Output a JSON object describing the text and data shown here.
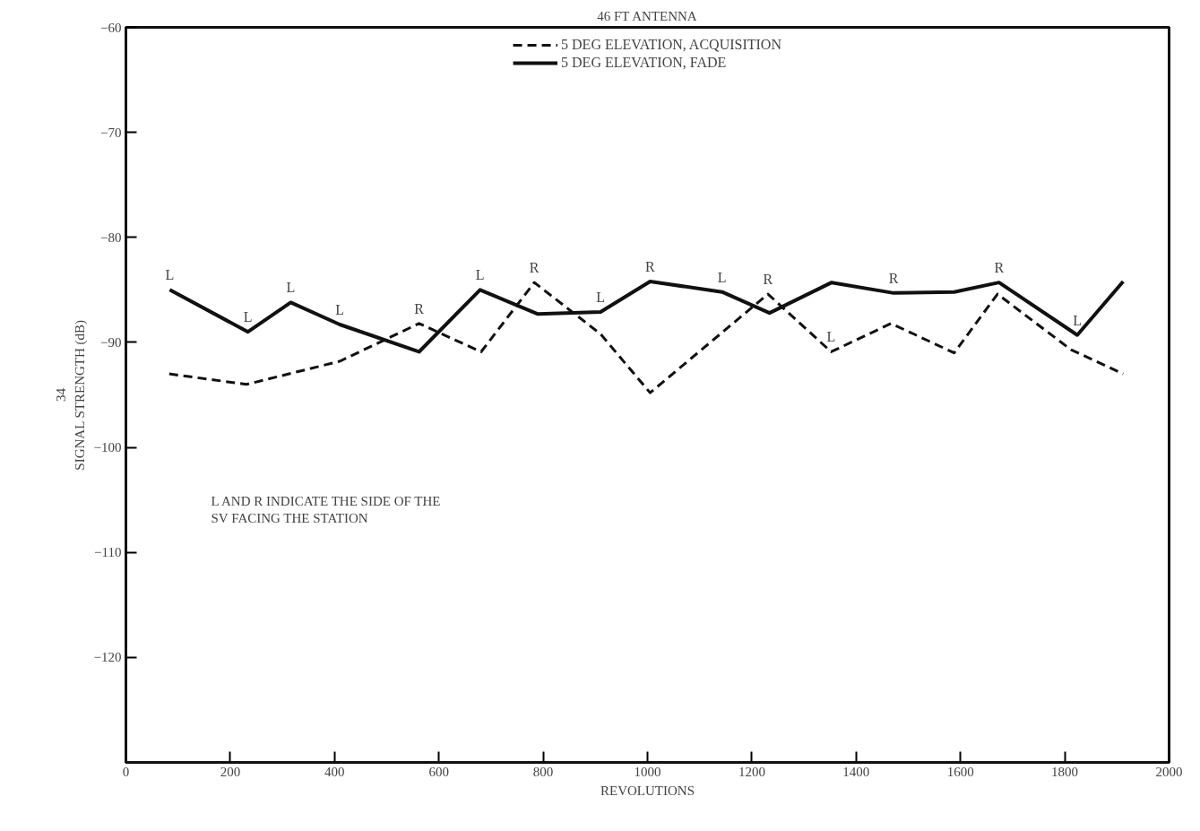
{
  "chart_data": {
    "type": "line",
    "title": "46 FT ANTENNA",
    "xlabel": "REVOLUTIONS",
    "ylabel": "SIGNAL STRENGTH (dB)",
    "xlim": [
      0,
      2000
    ],
    "xticks": [
      0,
      200,
      400,
      600,
      800,
      1000,
      1200,
      1400,
      1600,
      1800,
      2000
    ],
    "ylim": [
      -130,
      -60
    ],
    "yticks": [
      -60,
      -70,
      -80,
      -90,
      -100,
      -110,
      -120
    ],
    "grid": false,
    "legend": "top",
    "marker": "none",
    "series": [
      {
        "name": "5 DEG ELEVATION, ACQUISITION",
        "color": "#111111",
        "line_style": "dashed",
        "x": [
          83,
          231,
          410,
          562,
          681,
          783,
          910,
          1005,
          1231,
          1352,
          1467,
          1588,
          1671,
          1812,
          1912
        ],
        "values": [
          -93.0,
          -94.0,
          -91.8,
          -88.2,
          -90.9,
          -84.3,
          -89.2,
          -94.8,
          -85.4,
          -90.9,
          -88.2,
          -91.0,
          -85.4,
          -90.7,
          -93.0
        ]
      },
      {
        "name": "5 DEG ELEVATION, FADE",
        "color": "#111111",
        "line_style": "solid",
        "x": [
          84,
          234,
          316,
          410,
          562,
          679,
          790,
          910,
          1005,
          1143,
          1234,
          1353,
          1472,
          1588,
          1674,
          1824,
          1912
        ],
        "values": [
          -85.0,
          -89.0,
          -86.2,
          -88.3,
          -90.9,
          -85.0,
          -87.3,
          -87.1,
          -84.2,
          -85.2,
          -87.2,
          -84.3,
          -85.3,
          -85.2,
          -84.3,
          -89.3,
          -84.2
        ]
      }
    ],
    "annotations": [
      {
        "text": "L",
        "x": 84,
        "y": -85.0
      },
      {
        "text": "L",
        "x": 234,
        "y": -89.0
      },
      {
        "text": "L",
        "x": 316,
        "y": -86.2
      },
      {
        "text": "L",
        "x": 410,
        "y": -88.3
      },
      {
        "text": "R",
        "x": 562,
        "y": -88.2
      },
      {
        "text": "L",
        "x": 679,
        "y": -85.0
      },
      {
        "text": "R",
        "x": 783,
        "y": -84.3
      },
      {
        "text": "L",
        "x": 910,
        "y": -87.1
      },
      {
        "text": "R",
        "x": 1005,
        "y": -84.2
      },
      {
        "text": "L",
        "x": 1143,
        "y": -85.2
      },
      {
        "text": "R",
        "x": 1231,
        "y": -85.4
      },
      {
        "text": "L",
        "x": 1352,
        "y": -90.9
      },
      {
        "text": "R",
        "x": 1472,
        "y": -85.3
      },
      {
        "text": "R",
        "x": 1674,
        "y": -84.3
      },
      {
        "text": "L",
        "x": 1824,
        "y": -89.3
      },
      "L AND R INDICATE THE SIDE OF THE\nSV FACING THE STATION",
      "34"
    ]
  }
}
